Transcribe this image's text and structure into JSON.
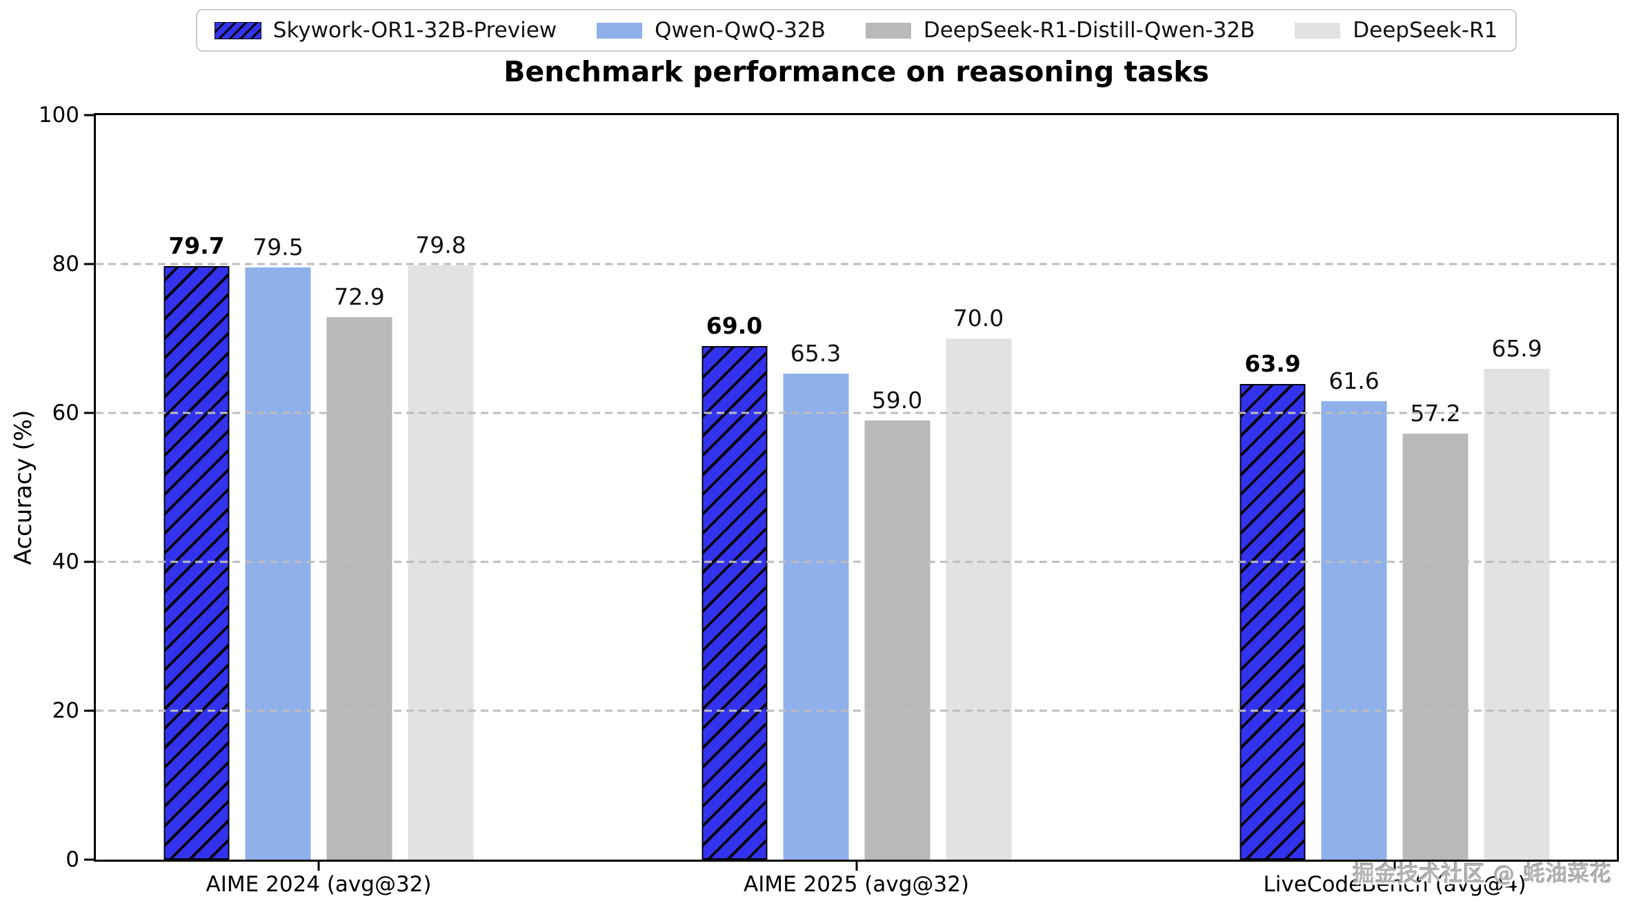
{
  "chart_data": {
    "type": "bar",
    "title": "Benchmark performance on reasoning tasks",
    "ylabel": "Accuracy (%)",
    "ylim": [
      0,
      100
    ],
    "yticks": [
      0,
      20,
      40,
      60,
      80,
      100
    ],
    "grid_values": [
      20,
      40,
      60,
      80
    ],
    "grid_style": "dashed",
    "legend_position": "top-center",
    "categories": [
      "AIME 2024 (avg@32)",
      "AIME 2025 (avg@32)",
      "LiveCodeBench (avg@4)"
    ],
    "series": [
      {
        "name": "Skywork-OR1-32B-Preview",
        "values": [
          79.7,
          69.0,
          63.9
        ],
        "color": "#3333ee",
        "hatch": "diagonal-black",
        "bold_labels": true
      },
      {
        "name": "Qwen-QwQ-32B",
        "values": [
          79.5,
          65.3,
          61.6
        ],
        "color": "#8fb0ea",
        "hatch": "none",
        "bold_labels": false
      },
      {
        "name": "DeepSeek-R1-Distill-Qwen-32B",
        "values": [
          72.9,
          59.0,
          57.2
        ],
        "color": "#b9b9b9",
        "hatch": "none",
        "bold_labels": false
      },
      {
        "name": "DeepSeek-R1",
        "values": [
          79.8,
          70.0,
          65.9
        ],
        "color": "#e2e2e2",
        "hatch": "none",
        "bold_labels": false
      }
    ]
  },
  "watermark": {
    "text": "掘金技术社区 @ 蚝油菜花"
  }
}
